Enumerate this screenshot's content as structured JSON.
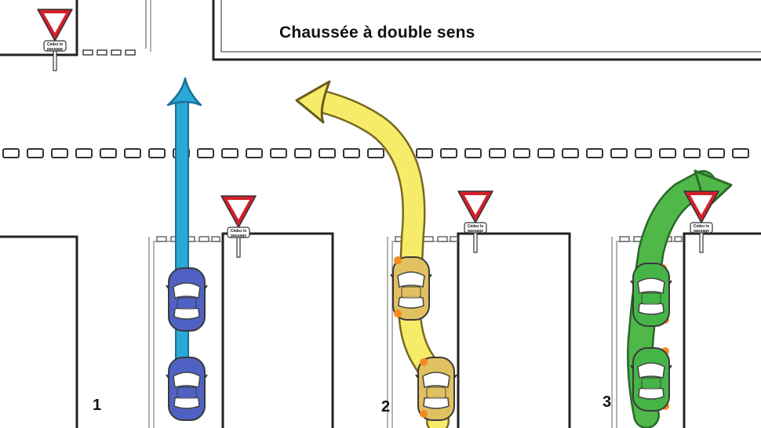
{
  "title": "Chaussée à double sens",
  "sign_label_line1": "Cédez le",
  "sign_label_line2": "passage",
  "scenario_numbers": [
    "1",
    "2",
    "3"
  ],
  "colors": {
    "blue_arrow": "#29a9d8",
    "yellow_arrow": "#f7ec6a",
    "green_arrow": "#4fb848",
    "blue_car": "#4f62c4",
    "yellow_car": "#e0c060",
    "green_car": "#46b548",
    "indicator": "#f58a1f",
    "sign_red": "#d2202a"
  },
  "icons": [
    "yield-sign-icon",
    "car-icon",
    "arrow-straight-icon",
    "arrow-left-turn-icon",
    "arrow-right-turn-icon"
  ]
}
